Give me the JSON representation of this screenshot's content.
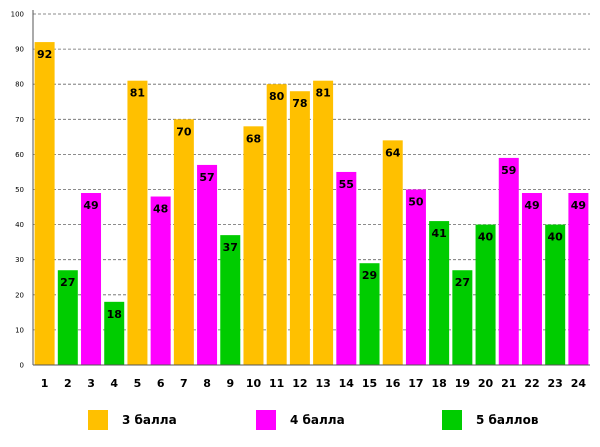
{
  "chart_data": {
    "type": "bar",
    "categories": [
      "1",
      "2",
      "3",
      "4",
      "5",
      "6",
      "7",
      "8",
      "9",
      "10",
      "11",
      "12",
      "13",
      "14",
      "15",
      "16",
      "17",
      "18",
      "19",
      "20",
      "21",
      "22",
      "23",
      "24"
    ],
    "values": [
      92,
      27,
      49,
      18,
      81,
      48,
      70,
      57,
      37,
      68,
      80,
      78,
      81,
      55,
      29,
      64,
      50,
      41,
      27,
      40,
      59,
      49,
      40,
      49
    ],
    "groups": [
      "3",
      "5",
      "4",
      "5",
      "3",
      "4",
      "3",
      "4",
      "5",
      "3",
      "3",
      "3",
      "3",
      "4",
      "5",
      "3",
      "4",
      "5",
      "5",
      "5",
      "4",
      "4",
      "5",
      "4"
    ],
    "ylim": [
      0,
      100
    ],
    "yticks": [
      "0",
      "10",
      "20",
      "30",
      "40",
      "50",
      "60",
      "70",
      "80",
      "90",
      "100"
    ],
    "grid": true,
    "legend_position": "bottom",
    "title": "",
    "xlabel": "",
    "ylabel": ""
  },
  "legend": [
    {
      "key": "3",
      "label": "3 балла",
      "color": "#FFC000"
    },
    {
      "key": "4",
      "label": "4 балла",
      "color": "#FF00FF"
    },
    {
      "key": "5",
      "label": "5 баллов",
      "color": "#00CC00"
    }
  ]
}
